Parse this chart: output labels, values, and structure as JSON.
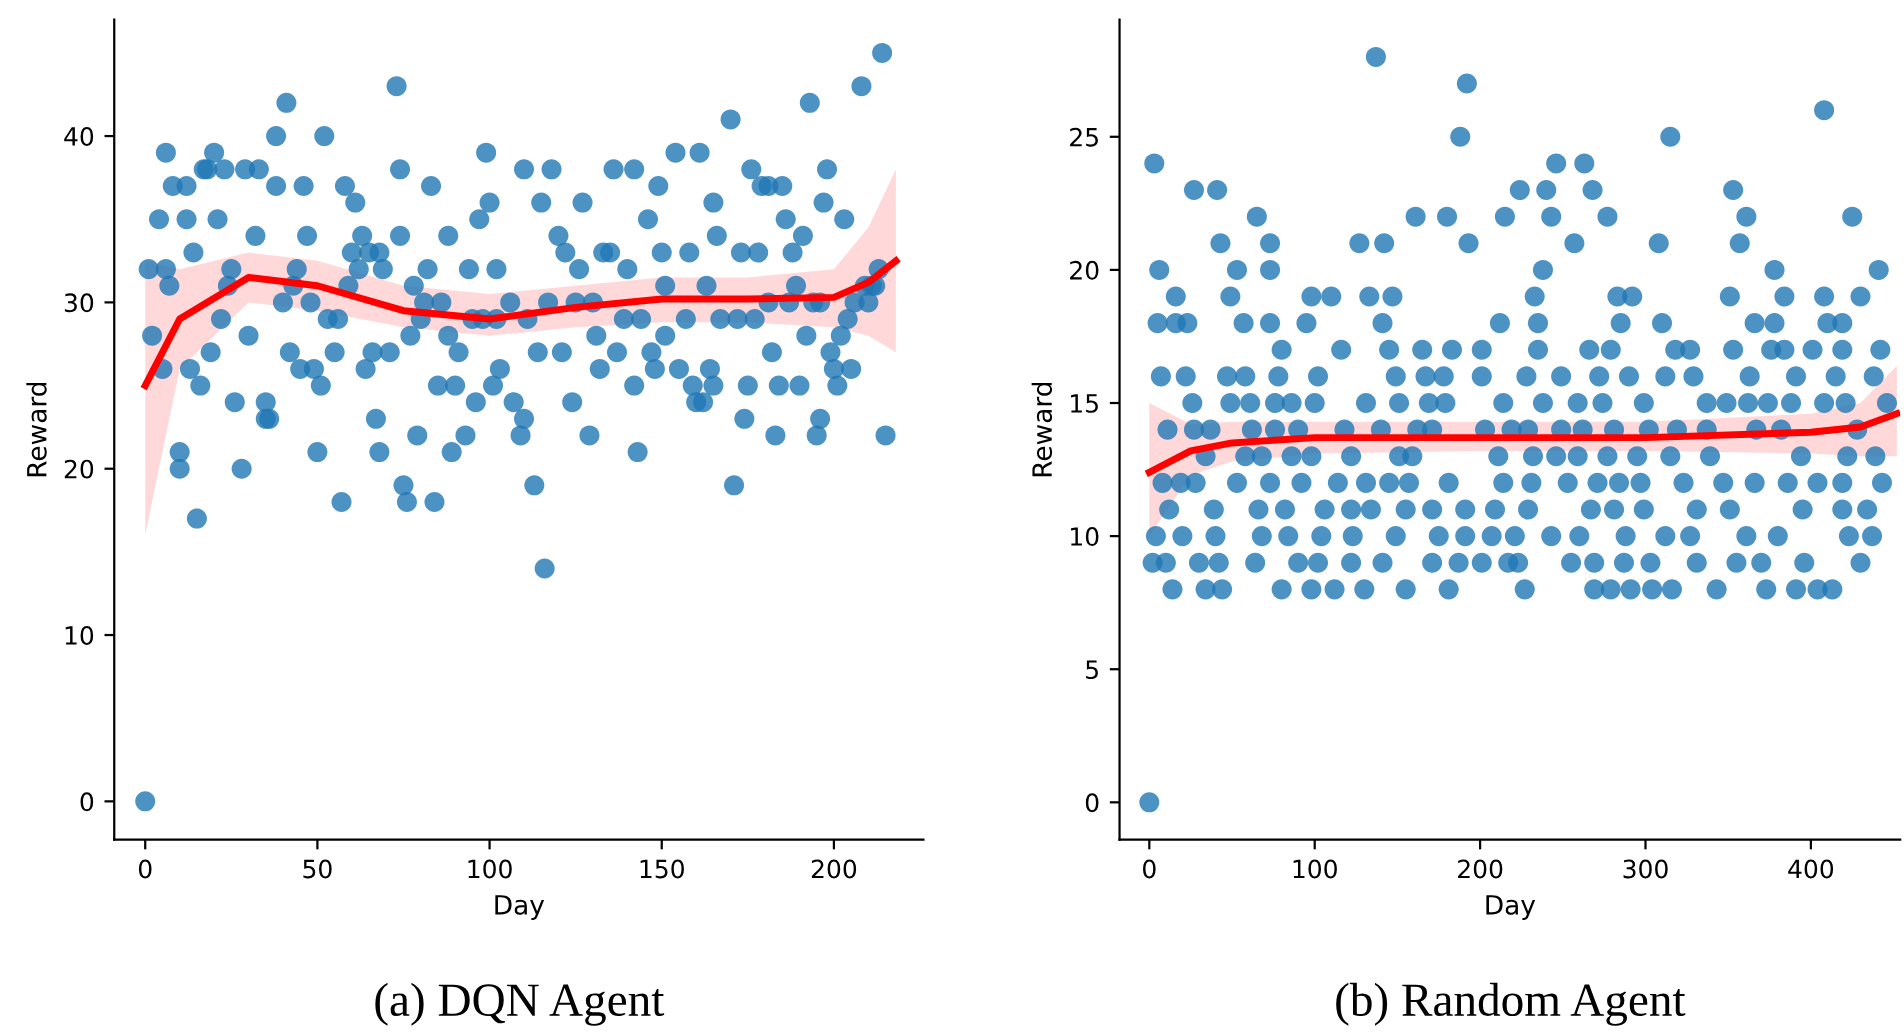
{
  "chart_data": [
    {
      "type": "scatter",
      "title": "(a) DQN Agent",
      "xlabel": "Day",
      "ylabel": "Reward",
      "xlim": [
        -9,
        226
      ],
      "ylim": [
        -2.3,
        47
      ],
      "xticks": [
        0,
        50,
        100,
        150,
        200
      ],
      "yticks": [
        0,
        10,
        20,
        30,
        40
      ],
      "grid": false,
      "series": [
        {
          "marker": "circle",
          "color": "#1f77b4",
          "x": [
            0,
            1,
            2,
            5,
            4,
            6,
            7,
            6,
            8,
            10,
            10,
            12,
            12,
            14,
            13,
            15,
            16,
            17,
            18,
            19,
            20,
            21,
            22,
            23,
            24,
            25,
            26,
            28,
            29,
            30,
            32,
            33,
            35,
            35,
            36,
            38,
            38,
            40,
            41,
            42,
            43,
            44,
            45,
            46,
            47,
            48,
            49,
            50,
            51,
            52,
            53,
            55,
            56,
            57,
            58,
            59,
            61,
            60,
            62,
            63,
            64,
            65,
            66,
            67,
            68,
            68,
            69,
            71,
            73,
            74,
            74,
            75,
            76,
            77,
            78,
            79,
            80,
            81,
            82,
            83,
            84,
            85,
            86,
            88,
            88,
            89,
            90,
            91,
            93,
            94,
            95,
            96,
            97,
            98,
            99,
            100,
            101,
            102,
            102,
            103,
            106,
            107,
            109,
            110,
            110,
            111,
            113,
            114,
            115,
            116,
            117,
            118,
            120,
            121,
            122,
            124,
            125,
            126,
            127,
            129,
            130,
            131,
            132,
            133,
            135,
            136,
            137,
            139,
            140,
            142,
            142,
            143,
            144,
            146,
            147,
            148,
            149,
            150,
            151,
            151,
            154,
            155,
            157,
            158,
            159,
            160,
            161,
            162,
            163,
            164,
            165,
            165,
            166,
            167,
            170,
            171,
            172,
            173,
            174,
            175,
            176,
            177,
            178,
            179,
            181,
            181,
            182,
            183,
            184,
            185,
            186,
            187,
            188,
            189,
            190,
            191,
            192,
            193,
            194,
            195,
            196,
            196,
            197,
            198,
            199,
            200,
            201,
            202,
            203,
            204,
            205,
            206,
            208,
            209,
            210,
            211,
            212,
            213,
            214,
            215
          ],
          "values": [
            0,
            32,
            28,
            26,
            35,
            32,
            31,
            39,
            37,
            21,
            20,
            35,
            37,
            33,
            26,
            17,
            25,
            38,
            38,
            27,
            39,
            35,
            29,
            38,
            31,
            32,
            24,
            20,
            38,
            28,
            34,
            38,
            24,
            23,
            23,
            40,
            37,
            30,
            42,
            27,
            31,
            32,
            26,
            37,
            34,
            30,
            26,
            21,
            25,
            40,
            29,
            27,
            29,
            18,
            37,
            31,
            36,
            33,
            32,
            34,
            26,
            33,
            27,
            23,
            21,
            33,
            32,
            27,
            43,
            34,
            38,
            19,
            18,
            28,
            31,
            22,
            29,
            30,
            32,
            37,
            18,
            25,
            30,
            28,
            34,
            21,
            25,
            27,
            22,
            32,
            29,
            24,
            35,
            29,
            39,
            36,
            25,
            32,
            29,
            26,
            30,
            24,
            22,
            38,
            23,
            29,
            19,
            27,
            36,
            14,
            30,
            38,
            34,
            27,
            33,
            24,
            30,
            32,
            36,
            22,
            30,
            28,
            26,
            33,
            33,
            38,
            27,
            29,
            32,
            38,
            25,
            21,
            29,
            35,
            27,
            26,
            37,
            33,
            31,
            28,
            39,
            26,
            29,
            33,
            25,
            24,
            39,
            24,
            31,
            26,
            25,
            36,
            34,
            29,
            41,
            19,
            29,
            33,
            23,
            25,
            38,
            29,
            33,
            37,
            30,
            37,
            27,
            22,
            25,
            37,
            35,
            30,
            33,
            31,
            25,
            34,
            28,
            42,
            30,
            22,
            23,
            30,
            36,
            38,
            27,
            26,
            25,
            28,
            35,
            29,
            26,
            30,
            43,
            31,
            30,
            31,
            31,
            32,
            45,
            22
          ]
        },
        {
          "type": "line",
          "color": "#ff0000",
          "x": [
            0,
            10,
            30,
            50,
            75,
            100,
            125,
            150,
            175,
            200,
            210,
            218
          ],
          "values": [
            25,
            29,
            31.5,
            31,
            29.5,
            29,
            29.7,
            30.2,
            30.2,
            30.3,
            31.2,
            32.5
          ],
          "lower": [
            16,
            26,
            30,
            29.5,
            28.5,
            28,
            28.5,
            28.8,
            28.8,
            28.5,
            28,
            27
          ],
          "upper": [
            32.5,
            32,
            33,
            32.5,
            31,
            30.5,
            31,
            31.5,
            31.5,
            32,
            34.5,
            38
          ]
        }
      ]
    },
    {
      "type": "scatter",
      "title": "(b) Random Agent",
      "xlabel": "Day",
      "ylabel": "Reward",
      "xlim": [
        -18,
        454
      ],
      "ylim": [
        -1.4,
        29.4
      ],
      "xticks": [
        0,
        100,
        200,
        300,
        400
      ],
      "yticks": [
        0,
        5,
        10,
        15,
        20,
        25
      ],
      "grid": false,
      "series": [
        {
          "marker": "circle",
          "color": "#1f77b4",
          "x": [
            0,
            137,
            192,
            188,
            3,
            27,
            41,
            65,
            161,
            180,
            215,
            43,
            73,
            127,
            142,
            193,
            6,
            53,
            73,
            16,
            49,
            98,
            110,
            133,
            147,
            5,
            16,
            23,
            57,
            73,
            95,
            141,
            212,
            80,
            116,
            145,
            165,
            183,
            201,
            7,
            22,
            47,
            58,
            78,
            102,
            149,
            167,
            178,
            201,
            26,
            49,
            61,
            76,
            86,
            100,
            131,
            151,
            169,
            179,
            214,
            11,
            27,
            37,
            62,
            76,
            90,
            118,
            140,
            162,
            171,
            203,
            219,
            34,
            58,
            68,
            86,
            98,
            122,
            151,
            159,
            211,
            8,
            19,
            28,
            53,
            73,
            92,
            114,
            131,
            145,
            157,
            181,
            214,
            12,
            39,
            66,
            82,
            106,
            122,
            134,
            155,
            171,
            191,
            209,
            4,
            20,
            40,
            68,
            84,
            104,
            123,
            149,
            175,
            191,
            207,
            221,
            2,
            10,
            30,
            42,
            64,
            90,
            102,
            122,
            141,
            171,
            187,
            201,
            217,
            14,
            34,
            44,
            80,
            98,
            112,
            130,
            155,
            181,
            408,
            315,
            246,
            263,
            224,
            240,
            268,
            353,
            243,
            277,
            361,
            425,
            257,
            308,
            357,
            238,
            378,
            441,
            233,
            283,
            292,
            351,
            384,
            408,
            430,
            235,
            285,
            310,
            366,
            378,
            410,
            419,
            235,
            266,
            279,
            318,
            327,
            353,
            376,
            384,
            401,
            419,
            442,
            228,
            249,
            272,
            290,
            312,
            329,
            363,
            391,
            415,
            438,
            238,
            259,
            274,
            299,
            337,
            349,
            362,
            374,
            388,
            408,
            421,
            446,
            229,
            249,
            262,
            281,
            302,
            319,
            337,
            367,
            382,
            428,
            232,
            246,
            259,
            277,
            295,
            315,
            339,
            394,
            422,
            439,
            231,
            253,
            271,
            284,
            297,
            323,
            347,
            366,
            386,
            404,
            419,
            443,
            229,
            267,
            281,
            299,
            331,
            351,
            395,
            419,
            434,
            243,
            260,
            288,
            312,
            327,
            361,
            380,
            423,
            437,
            223,
            255,
            269,
            287,
            303,
            331,
            355,
            370,
            396,
            430,
            227,
            269,
            279,
            291,
            304,
            316,
            343,
            373,
            391,
            404,
            413
          ],
          "values": [
            0,
            28,
            27,
            25,
            24,
            23,
            23,
            22,
            22,
            22,
            22,
            21,
            21,
            21,
            21,
            21,
            20,
            20,
            20,
            19,
            19,
            19,
            19,
            19,
            19,
            18,
            18,
            18,
            18,
            18,
            18,
            18,
            18,
            17,
            17,
            17,
            17,
            17,
            17,
            16,
            16,
            16,
            16,
            16,
            16,
            16,
            16,
            16,
            16,
            15,
            15,
            15,
            15,
            15,
            15,
            15,
            15,
            15,
            15,
            15,
            14,
            14,
            14,
            14,
            14,
            14,
            14,
            14,
            14,
            14,
            14,
            14,
            13,
            13,
            13,
            13,
            13,
            13,
            13,
            13,
            13,
            12,
            12,
            12,
            12,
            12,
            12,
            12,
            12,
            12,
            12,
            12,
            12,
            11,
            11,
            11,
            11,
            11,
            11,
            11,
            11,
            11,
            11,
            11,
            10,
            10,
            10,
            10,
            10,
            10,
            10,
            10,
            10,
            10,
            10,
            10,
            9,
            9,
            9,
            9,
            9,
            9,
            9,
            9,
            9,
            9,
            9,
            9,
            9,
            8,
            8,
            8,
            8,
            8,
            8,
            8,
            8,
            8,
            26,
            25,
            24,
            24,
            23,
            23,
            23,
            23,
            22,
            22,
            22,
            22,
            21,
            21,
            21,
            20,
            20,
            20,
            19,
            19,
            19,
            19,
            19,
            19,
            19,
            18,
            18,
            18,
            18,
            18,
            18,
            18,
            17,
            17,
            17,
            17,
            17,
            17,
            17,
            17,
            17,
            17,
            17,
            16,
            16,
            16,
            16,
            16,
            16,
            16,
            16,
            16,
            16,
            15,
            15,
            15,
            15,
            15,
            15,
            15,
            15,
            15,
            15,
            15,
            15,
            14,
            14,
            14,
            14,
            14,
            14,
            14,
            14,
            14,
            14,
            13,
            13,
            13,
            13,
            13,
            13,
            13,
            13,
            13,
            13,
            12,
            12,
            12,
            12,
            12,
            12,
            12,
            12,
            12,
            12,
            12,
            12,
            11,
            11,
            11,
            11,
            11,
            11,
            11,
            11,
            11,
            10,
            10,
            10,
            10,
            10,
            10,
            10,
            10,
            10,
            9,
            9,
            9,
            9,
            9,
            9,
            9,
            9,
            9,
            9,
            8,
            8,
            8,
            8,
            8,
            8,
            8,
            8,
            8,
            8,
            8
          ]
        },
        {
          "type": "line",
          "color": "#ff0000",
          "x": [
            0,
            25,
            50,
            100,
            200,
            300,
            400,
            430,
            452
          ],
          "values": [
            12.4,
            13.2,
            13.5,
            13.7,
            13.7,
            13.7,
            13.9,
            14.1,
            14.6
          ],
          "lower": [
            10,
            12.3,
            12.8,
            13.1,
            13.2,
            13.2,
            13.1,
            13,
            13
          ],
          "upper": [
            15,
            14.2,
            14.3,
            14.3,
            14.3,
            14.3,
            14.6,
            15,
            16.4
          ]
        }
      ]
    }
  ]
}
